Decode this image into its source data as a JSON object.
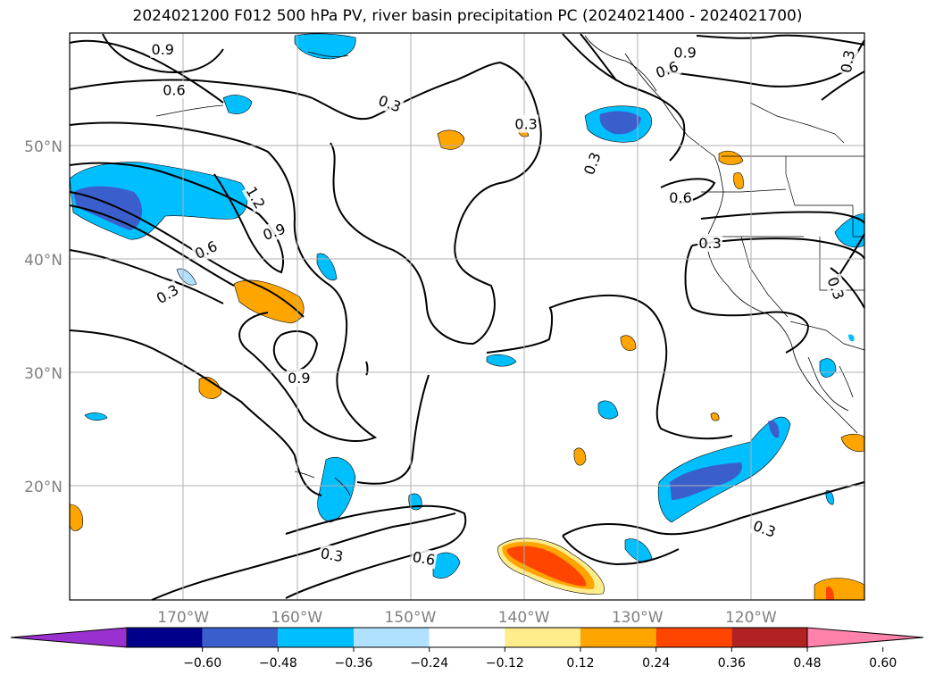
{
  "title": "2024021200 F012 500 hPa PV, river basin precipitation PC (2024021400 - 2024021700)",
  "map": {
    "lon_range": [
      -180,
      -110
    ],
    "lat_range": [
      10,
      60
    ],
    "lat_ticks": [
      {
        "value": 50,
        "label": "50°N"
      },
      {
        "value": 40,
        "label": "40°N"
      },
      {
        "value": 30,
        "label": "30°N"
      },
      {
        "value": 20,
        "label": "20°N"
      }
    ],
    "lon_ticks": [
      {
        "value": -170,
        "label": "170°W"
      },
      {
        "value": -160,
        "label": "160°W"
      },
      {
        "value": -150,
        "label": "150°W"
      },
      {
        "value": -140,
        "label": "140°W"
      },
      {
        "value": -130,
        "label": "130°W"
      },
      {
        "value": -120,
        "label": "120°W"
      }
    ]
  },
  "colorbar": {
    "colors": [
      "#9b30d0",
      "#00008b",
      "#3a5fcd",
      "#00bfff",
      "#b0e2ff",
      "#ffffff",
      "#ffec8b",
      "#ffa500",
      "#ff4500",
      "#b22222",
      "#ff82ab"
    ],
    "labels": [
      "−0.60",
      "−0.48",
      "−0.36",
      "−0.24",
      "−0.12",
      "0.12",
      "0.24",
      "0.36",
      "0.48",
      "0.60"
    ]
  },
  "pv_labels": [
    {
      "text": "0.9",
      "lon": -159.8,
      "lat": 29.6,
      "angle": 0
    },
    {
      "text": "0.9",
      "lon": -162.0,
      "lat": 42.5,
      "angle": 20
    },
    {
      "text": "0.9",
      "lon": -171.8,
      "lat": 58.6,
      "angle": 0
    },
    {
      "text": "0.9",
      "lon": -125.8,
      "lat": 58.3,
      "angle": 0
    },
    {
      "text": "0.6",
      "lon": -170.8,
      "lat": 55.0,
      "angle": 0
    },
    {
      "text": "0.6",
      "lon": -168.0,
      "lat": 40.9,
      "angle": 25
    },
    {
      "text": "0.6",
      "lon": -127.4,
      "lat": 56.8,
      "angle": 20
    },
    {
      "text": "0.6",
      "lon": -126.2,
      "lat": 45.5,
      "angle": 0
    },
    {
      "text": "0.6",
      "lon": -148.8,
      "lat": 13.7,
      "angle": -10
    },
    {
      "text": "0.3",
      "lon": -171.4,
      "lat": 37.0,
      "angle": 30
    },
    {
      "text": "0.3",
      "lon": -151.8,
      "lat": 53.8,
      "angle": -20
    },
    {
      "text": "0.3",
      "lon": -139.8,
      "lat": 52.0,
      "angle": 0
    },
    {
      "text": "0.3",
      "lon": -134.0,
      "lat": 48.5,
      "angle": 70
    },
    {
      "text": "0.3",
      "lon": -123.6,
      "lat": 41.5,
      "angle": 0
    },
    {
      "text": "0.3",
      "lon": -118.8,
      "lat": 16.3,
      "angle": -20
    },
    {
      "text": "0.3",
      "lon": -156.9,
      "lat": 14.0,
      "angle": -10
    },
    {
      "text": "0.3",
      "lon": -112.5,
      "lat": 37.5,
      "angle": -70
    },
    {
      "text": "0.3",
      "lon": -111.5,
      "lat": 57.5,
      "angle": 80
    },
    {
      "text": "1.2",
      "lon": -163.6,
      "lat": 45.5,
      "angle": -60
    }
  ]
}
